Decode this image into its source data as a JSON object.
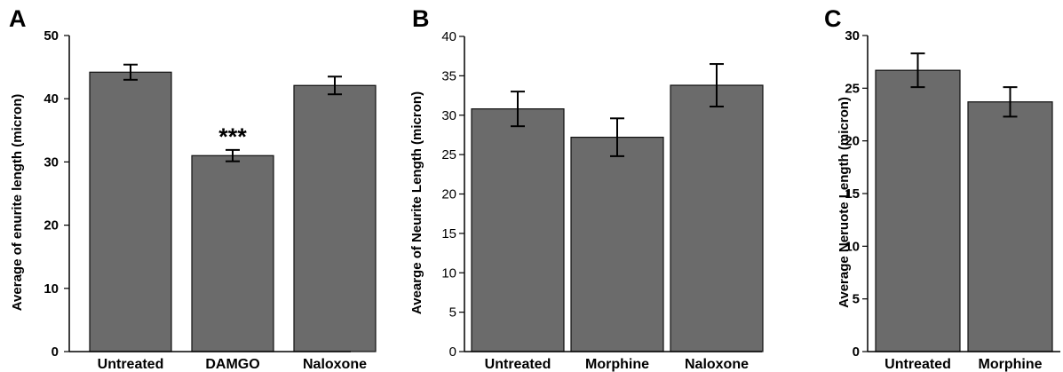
{
  "colors": {
    "bar_fill": "#6b6b6b",
    "bar_stroke": "#111111",
    "axis": "#000000"
  },
  "chart_data": [
    {
      "panel": "A",
      "type": "bar",
      "ylabel": "Average of enurite length (micron)",
      "ylim": [
        0,
        50
      ],
      "yticks": [
        0,
        10,
        20,
        30,
        40,
        50
      ],
      "bold_ticks": true,
      "categories": [
        "Untreated",
        "DAMGO",
        "Naloxone"
      ],
      "values": [
        44.2,
        31.0,
        42.1
      ],
      "errors": [
        1.2,
        0.9,
        1.4
      ],
      "annotations": [
        {
          "category": "DAMGO",
          "text": "***"
        }
      ],
      "grid": false
    },
    {
      "panel": "B",
      "type": "bar",
      "ylabel": "Avearge of Neurite Length (micron)",
      "ylim": [
        0,
        40
      ],
      "yticks": [
        0,
        5,
        10,
        15,
        20,
        25,
        30,
        35,
        40
      ],
      "bold_ticks": false,
      "categories": [
        "Untreated",
        "Morphine",
        "Naloxone"
      ],
      "values": [
        30.8,
        27.2,
        33.8
      ],
      "errors": [
        2.2,
        2.4,
        2.7
      ],
      "annotations": [],
      "grid": false
    },
    {
      "panel": "C",
      "type": "bar",
      "ylabel": "Average Neruote Length (micron)",
      "ylim": [
        0,
        30
      ],
      "yticks": [
        0,
        5,
        10,
        15,
        20,
        25,
        30
      ],
      "bold_ticks": true,
      "categories": [
        "Untreated",
        "Morphine"
      ],
      "values": [
        26.7,
        23.7
      ],
      "errors": [
        1.6,
        1.4
      ],
      "annotations": [],
      "grid": false
    }
  ]
}
